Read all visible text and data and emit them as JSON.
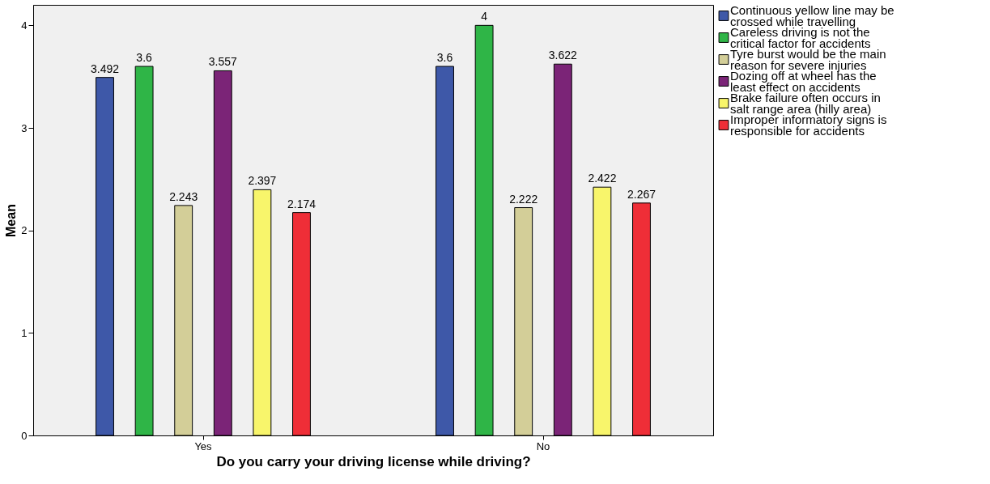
{
  "chart_data": {
    "type": "bar",
    "xlabel": "Do you carry your driving license while driving?",
    "ylabel": "Mean",
    "categories": [
      "Yes",
      "No"
    ],
    "series": [
      {
        "name": "Continuous yellow line may be crossed while travelling",
        "color": "#3e58a8",
        "values": [
          3.492,
          3.6
        ]
      },
      {
        "name": "Careless driving is not the critical factor for accidents",
        "color": "#2fb547",
        "values": [
          3.6,
          4
        ]
      },
      {
        "name": "Tyre burst would be the main reason for severe injuries",
        "color": "#d3ce98",
        "values": [
          2.243,
          2.222
        ]
      },
      {
        "name": "Dozing off at wheel has the least effect on accidents",
        "color": "#7b2477",
        "values": [
          3.557,
          3.622
        ]
      },
      {
        "name": "Brake failure often occurs in salt range area (hilly area)",
        "color": "#f8f56b",
        "values": [
          2.397,
          2.422
        ]
      },
      {
        "name": "Improper informatory signs is responsible  for accidents",
        "color": "#ef2e37",
        "values": [
          2.174,
          2.267
        ]
      }
    ],
    "ylim": [
      0,
      4.2
    ],
    "yticks": [
      0,
      1,
      2,
      3,
      4
    ],
    "grid": false,
    "legend": "right",
    "data_labels": true
  }
}
